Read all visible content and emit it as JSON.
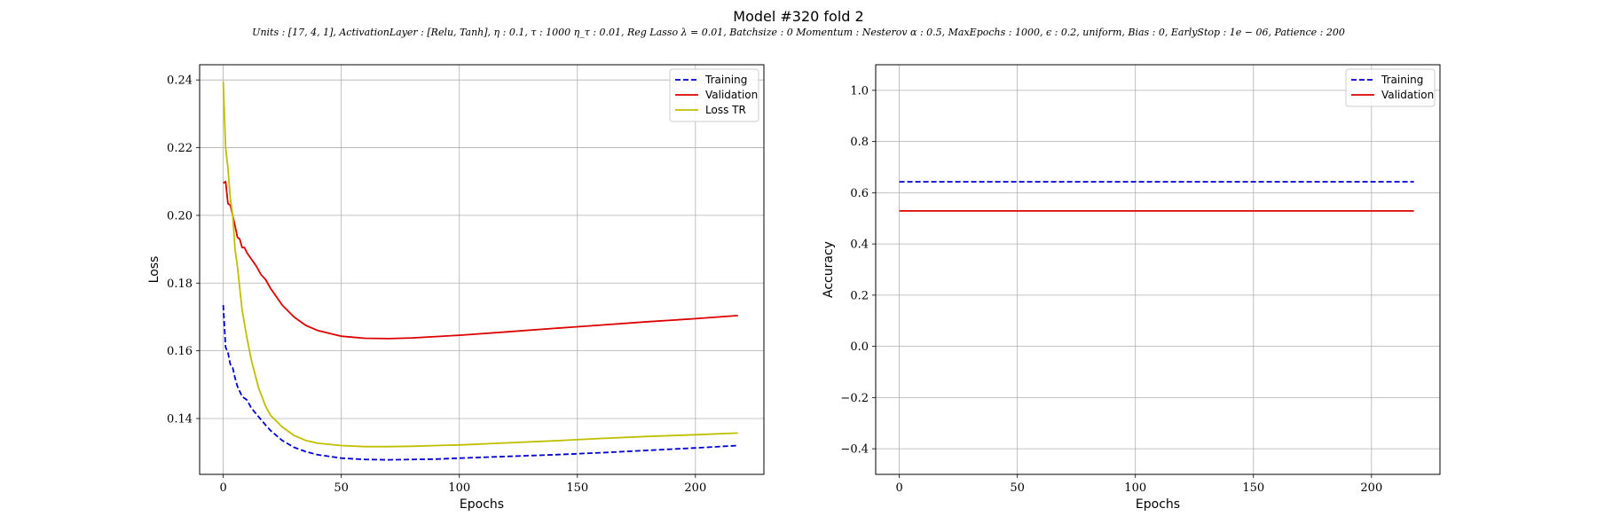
{
  "header": {
    "title": "Model #320 fold 2",
    "subtitle": "Units : [17, 4, 1], ActivationLayer : [Relu, Tanh], η : 0.1, τ : 1000 η_τ : 0.01, Reg Lasso λ = 0.01, Batchsize : 0 Momentum : Nesterov α : 0.5, MaxEpochs : 1000, ϵ : 0.2, uniform, Bias : 0, EarlyStop : 1e − 06, Patience : 200"
  },
  "colors": {
    "training": "#0000cc",
    "validation": "#dd0000",
    "loss_tr": "#bfbf00",
    "grid": "#b0b0b0"
  },
  "chart_data": [
    {
      "type": "line",
      "xlabel": "Epochs",
      "ylabel": "Loss",
      "xlim": [
        -10,
        229
      ],
      "ylim": [
        0.1235,
        0.2445
      ],
      "xticks": [
        0,
        50,
        100,
        150,
        200
      ],
      "xtick_labels": [
        "0",
        "50",
        "100",
        "150",
        "200"
      ],
      "yticks": [
        0.14,
        0.16,
        0.18,
        0.2,
        0.22,
        0.24
      ],
      "ytick_labels": [
        "0.14",
        "0.16",
        "0.18",
        "0.20",
        "0.22",
        "0.24"
      ],
      "grid": true,
      "legend_position": "top-right",
      "series": [
        {
          "name": "Training",
          "style": "dashed",
          "color": "#0000cc",
          "x": [
            0,
            1,
            2,
            3,
            4,
            5,
            6,
            8,
            10,
            12,
            15,
            18,
            20,
            25,
            30,
            35,
            40,
            50,
            60,
            70,
            80,
            90,
            100,
            120,
            140,
            160,
            180,
            200,
            218
          ],
          "y": [
            0.1735,
            0.161,
            0.1595,
            0.156,
            0.155,
            0.152,
            0.1495,
            0.1465,
            0.1455,
            0.143,
            0.1405,
            0.138,
            0.1365,
            0.1335,
            0.1315,
            0.1302,
            0.1293,
            0.1283,
            0.1279,
            0.1278,
            0.1279,
            0.128,
            0.1283,
            0.1288,
            0.1293,
            0.1299,
            0.1306,
            0.1313,
            0.132
          ]
        },
        {
          "name": "Validation",
          "style": "solid",
          "color": "#dd0000",
          "x": [
            0,
            1,
            2,
            3,
            4,
            5,
            6,
            7,
            8,
            9,
            10,
            12,
            14,
            16,
            18,
            20,
            25,
            30,
            35,
            40,
            50,
            60,
            70,
            80,
            90,
            100,
            120,
            140,
            160,
            180,
            200,
            218
          ],
          "y": [
            0.2095,
            0.21,
            0.2035,
            0.203,
            0.2,
            0.197,
            0.1935,
            0.193,
            0.1905,
            0.1905,
            0.189,
            0.187,
            0.185,
            0.1825,
            0.181,
            0.1785,
            0.1735,
            0.17,
            0.1675,
            0.166,
            0.1643,
            0.1637,
            0.1636,
            0.1638,
            0.1642,
            0.1646,
            0.1656,
            0.1666,
            0.1676,
            0.1686,
            0.1695,
            0.1704
          ]
        },
        {
          "name": "Loss TR",
          "style": "solid",
          "color": "#bfbf00",
          "x": [
            0,
            1,
            2,
            3,
            4,
            5,
            6,
            8,
            10,
            12,
            15,
            18,
            20,
            25,
            30,
            35,
            40,
            50,
            60,
            70,
            80,
            90,
            100,
            120,
            140,
            160,
            180,
            200,
            218
          ],
          "y": [
            0.2395,
            0.22,
            0.214,
            0.205,
            0.2,
            0.19,
            0.185,
            0.172,
            0.164,
            0.157,
            0.149,
            0.1435,
            0.141,
            0.1375,
            0.135,
            0.1335,
            0.1327,
            0.132,
            0.1317,
            0.1317,
            0.1318,
            0.132,
            0.1322,
            0.1328,
            0.1334,
            0.1341,
            0.1347,
            0.1352,
            0.1357
          ]
        }
      ]
    },
    {
      "type": "line",
      "xlabel": "Epochs",
      "ylabel": "Accuracy",
      "xlim": [
        -10,
        229
      ],
      "ylim": [
        -0.5,
        1.1
      ],
      "xticks": [
        0,
        50,
        100,
        150,
        200
      ],
      "xtick_labels": [
        "0",
        "50",
        "100",
        "150",
        "200"
      ],
      "yticks": [
        -0.4,
        -0.2,
        0.0,
        0.2,
        0.4,
        0.6,
        0.8,
        1.0
      ],
      "ytick_labels": [
        "−0.4",
        "−0.2",
        "0.0",
        "0.2",
        "0.4",
        "0.6",
        "0.8",
        "1.0"
      ],
      "grid": true,
      "legend_position": "top-right",
      "series": [
        {
          "name": "Training",
          "style": "dashed",
          "color": "#0000cc",
          "x": [
            0,
            218
          ],
          "y": [
            0.643,
            0.643
          ]
        },
        {
          "name": "Validation",
          "style": "solid",
          "color": "#dd0000",
          "x": [
            0,
            218
          ],
          "y": [
            0.529,
            0.529
          ]
        }
      ]
    }
  ]
}
